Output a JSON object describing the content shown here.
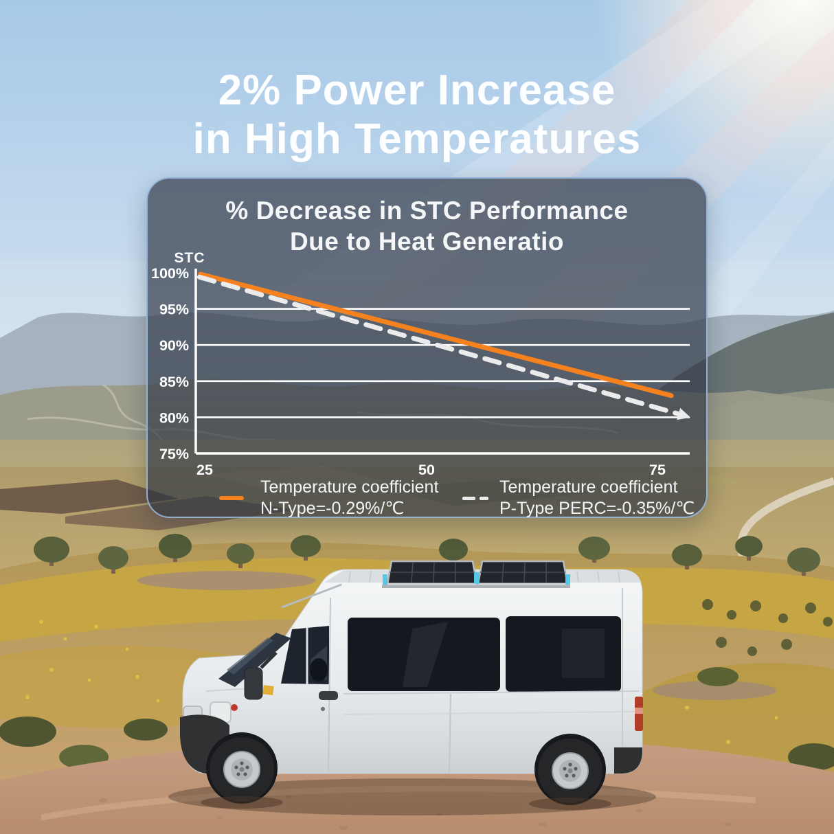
{
  "headline": {
    "line1": "2% Power Increase",
    "line2": "in High Temperatures"
  },
  "chart_panel": {
    "title_line1": "% Decrease in STC Performance",
    "title_line2": "Due to Heat Generatio",
    "legend": [
      {
        "swatch": "solid-orange-line",
        "line1": "Temperature coefficient",
        "line2": "N-Type=-0.29%/℃"
      },
      {
        "swatch": "dashed-white-line",
        "line1": "Temperature coefficient",
        "line2": "P-Type PERC=-0.35%/℃"
      }
    ]
  },
  "chart_data": {
    "type": "line",
    "title": "% Decrease in STC Performance Due to Heat Generatio",
    "xlabel": "",
    "ylabel": "STC",
    "xlim": [
      25,
      78.5
    ],
    "ylim": [
      75,
      100
    ],
    "grid": true,
    "legend_position": "bottom",
    "x_ticks": [
      {
        "label": "25",
        "value": 25
      },
      {
        "label": "50",
        "value": 50
      },
      {
        "label": "75",
        "value": 75
      }
    ],
    "y_ticks": [
      {
        "label": "100%",
        "value": 100
      },
      {
        "label": "95%",
        "value": 95
      },
      {
        "label": "90%",
        "value": 90
      },
      {
        "label": "85%",
        "value": 85
      },
      {
        "label": "80%",
        "value": 80
      },
      {
        "label": "75%",
        "value": 75
      }
    ],
    "gridlines_at": [
      95,
      90,
      85,
      80
    ],
    "series": [
      {
        "name": "Temperature coefficient N-Type=-0.29%/℃",
        "color": "#f5821f",
        "style": "solid",
        "arrow_end": false,
        "points": [
          [
            25.5,
            99.8
          ],
          [
            76.5,
            83.0
          ]
        ]
      },
      {
        "name": "Temperature coefficient P-Type PERC=-0.35%/℃",
        "color": "#ebebeb",
        "style": "dashed",
        "arrow_end": true,
        "points": [
          [
            25.4,
            99.4
          ],
          [
            78.0,
            80.2
          ]
        ]
      }
    ],
    "colors": {
      "accent_orange": "#f5821f",
      "dashed_gray": "#ebebeb",
      "axis_white": "#ffffff"
    }
  }
}
